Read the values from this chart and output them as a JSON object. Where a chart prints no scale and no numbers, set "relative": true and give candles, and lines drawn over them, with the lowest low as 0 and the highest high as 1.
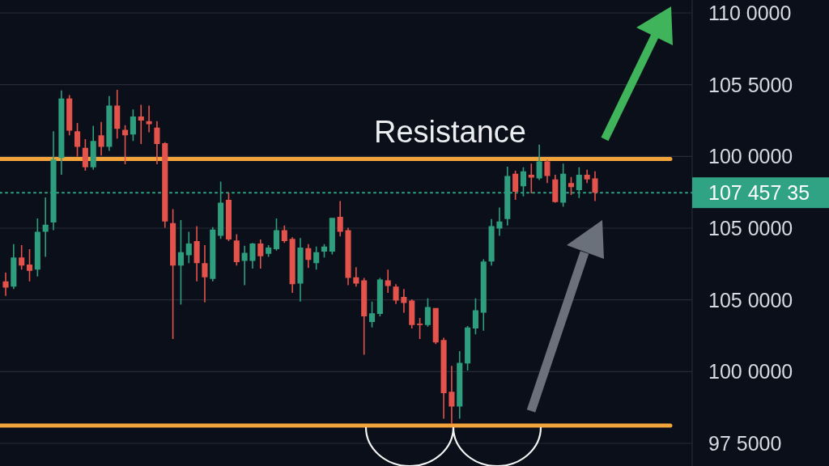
{
  "chart_data": {
    "type": "candlestick",
    "relative": true,
    "grid": "y",
    "categories": [
      null,
      null,
      null,
      null,
      null,
      null,
      null,
      null,
      null,
      null,
      null,
      null,
      null,
      null,
      null,
      null,
      null,
      null,
      null,
      null,
      null,
      null,
      null,
      null,
      null,
      null,
      null,
      null,
      null,
      null,
      null,
      null,
      null,
      null,
      null,
      null,
      null,
      null,
      null,
      null,
      null,
      null,
      null,
      null,
      null,
      null,
      null,
      null,
      null,
      null,
      null,
      null,
      null,
      null,
      null,
      null,
      null,
      null,
      null,
      null,
      null,
      null,
      null,
      null,
      null,
      null,
      null,
      null,
      null,
      null,
      null,
      null,
      null,
      null,
      null
    ],
    "ohlc": [
      [
        0.427,
        0.453,
        0.383,
        0.408
      ],
      [
        0.411,
        0.538,
        0.404,
        0.498
      ],
      [
        0.498,
        0.535,
        0.462,
        0.474
      ],
      [
        0.477,
        0.523,
        0.427,
        0.458
      ],
      [
        0.462,
        0.615,
        0.441,
        0.575
      ],
      [
        0.575,
        0.678,
        0.5,
        0.596
      ],
      [
        0.603,
        0.876,
        0.58,
        0.791
      ],
      [
        0.796,
        0.998,
        0.746,
        0.974
      ],
      [
        0.974,
        0.984,
        0.864,
        0.878
      ],
      [
        0.876,
        0.901,
        0.8,
        0.829
      ],
      [
        0.826,
        0.852,
        0.758,
        0.768
      ],
      [
        0.768,
        0.892,
        0.761,
        0.847
      ],
      [
        0.864,
        0.904,
        0.803,
        0.829
      ],
      [
        0.829,
        0.981,
        0.817,
        0.953
      ],
      [
        0.953,
        1.0,
        0.854,
        0.883
      ],
      [
        0.88,
        0.894,
        0.777,
        0.864
      ],
      [
        0.866,
        0.941,
        0.847,
        0.92
      ],
      [
        0.92,
        0.955,
        0.838,
        0.908
      ],
      [
        0.906,
        0.953,
        0.873,
        0.897
      ],
      [
        0.887,
        0.906,
        0.777,
        0.838
      ],
      [
        0.84,
        0.843,
        0.587,
        0.606
      ],
      [
        0.601,
        0.643,
        0.254,
        0.474
      ],
      [
        0.474,
        0.61,
        0.357,
        0.514
      ],
      [
        0.505,
        0.575,
        0.481,
        0.54
      ],
      [
        0.547,
        0.592,
        0.427,
        0.481
      ],
      [
        0.481,
        0.535,
        0.364,
        0.439
      ],
      [
        0.434,
        0.589,
        0.427,
        0.582
      ],
      [
        0.563,
        0.725,
        0.554,
        0.662
      ],
      [
        0.671,
        0.692,
        0.547,
        0.552
      ],
      [
        0.549,
        0.568,
        0.474,
        0.484
      ],
      [
        0.488,
        0.533,
        0.415,
        0.512
      ],
      [
        0.488,
        0.542,
        0.465,
        0.54
      ],
      [
        0.54,
        0.552,
        0.465,
        0.502
      ],
      [
        0.509,
        0.535,
        0.5,
        0.528
      ],
      [
        0.523,
        0.615,
        0.519,
        0.58
      ],
      [
        0.58,
        0.594,
        0.542,
        0.547
      ],
      [
        0.554,
        0.559,
        0.392,
        0.418
      ],
      [
        0.42,
        0.556,
        0.366,
        0.528
      ],
      [
        0.526,
        0.538,
        0.467,
        0.491
      ],
      [
        0.481,
        0.531,
        0.462,
        0.514
      ],
      [
        0.516,
        0.538,
        0.498,
        0.531
      ],
      [
        0.516,
        0.617,
        0.507,
        0.617
      ],
      [
        0.62,
        0.667,
        0.561,
        0.575
      ],
      [
        0.58,
        0.587,
        0.415,
        0.437
      ],
      [
        0.439,
        0.469,
        0.411,
        0.42
      ],
      [
        0.43,
        0.437,
        0.207,
        0.322
      ],
      [
        0.305,
        0.366,
        0.289,
        0.331
      ],
      [
        0.329,
        0.437,
        0.322,
        0.432
      ],
      [
        0.43,
        0.462,
        0.392,
        0.413
      ],
      [
        0.411,
        0.418,
        0.359,
        0.369
      ],
      [
        0.38,
        0.404,
        0.333,
        0.362
      ],
      [
        0.369,
        0.373,
        0.286,
        0.296
      ],
      [
        0.3,
        0.317,
        0.254,
        0.296
      ],
      [
        0.296,
        0.376,
        0.291,
        0.35
      ],
      [
        0.347,
        0.347,
        0.239,
        0.244
      ],
      [
        0.251,
        0.258,
        0.016,
        0.092
      ],
      [
        0.096,
        0.174,
        0.0,
        0.052
      ],
      [
        0.052,
        0.218,
        0.016,
        0.183
      ],
      [
        0.181,
        0.293,
        0.16,
        0.289
      ],
      [
        0.286,
        0.376,
        0.268,
        0.34
      ],
      [
        0.333,
        0.493,
        0.279,
        0.486
      ],
      [
        0.486,
        0.613,
        0.474,
        0.592
      ],
      [
        0.585,
        0.648,
        0.563,
        0.606
      ],
      [
        0.613,
        0.77,
        0.594,
        0.742
      ],
      [
        0.749,
        0.758,
        0.671,
        0.695
      ],
      [
        0.711,
        0.768,
        0.681,
        0.756
      ],
      [
        0.746,
        0.779,
        0.69,
        0.737
      ],
      [
        0.735,
        0.836,
        0.73,
        0.786
      ],
      [
        0.786,
        0.791,
        0.721,
        0.742
      ],
      [
        0.732,
        0.746,
        0.662,
        0.664
      ],
      [
        0.662,
        0.779,
        0.65,
        0.749
      ],
      [
        0.721,
        0.739,
        0.685,
        0.709
      ],
      [
        0.7,
        0.768,
        0.676,
        0.746
      ],
      [
        0.746,
        0.761,
        0.721,
        0.732
      ],
      [
        0.735,
        0.756,
        0.667,
        0.692
      ]
    ],
    "colors": [
      "#e3524b",
      "#2e9e7e",
      "#e3524b",
      "#e3524b",
      "#2e9e7e",
      "#2e9e7e",
      "#2e9e7e",
      "#2e9e7e",
      "#e3524b",
      "#e3524b",
      "#e3524b",
      "#2e9e7e",
      "#e3524b",
      "#2e9e7e",
      "#e3524b",
      "#e3524b",
      "#2e9e7e",
      "#e3524b",
      "#e3524b",
      "#e3524b",
      "#e3524b",
      "#e3524b",
      "#2e9e7e",
      "#2e9e7e",
      "#e3524b",
      "#e3524b",
      "#2e9e7e",
      "#2e9e7e",
      "#e3524b",
      "#e3524b",
      "#2e9e7e",
      "#2e9e7e",
      "#e3524b",
      "#2e9e7e",
      "#2e9e7e",
      "#e3524b",
      "#e3524b",
      "#2e9e7e",
      "#e3524b",
      "#2e9e7e",
      "#2e9e7e",
      "#2e9e7e",
      "#e3524b",
      "#e3524b",
      "#e3524b",
      "#e3524b",
      "#2e9e7e",
      "#2e9e7e",
      "#e3524b",
      "#e3524b",
      "#e3524b",
      "#e3524b",
      "#e3524b",
      "#2e9e7e",
      "#e3524b",
      "#e3524b",
      "#e3524b",
      "#2e9e7e",
      "#2e9e7e",
      "#2e9e7e",
      "#2e9e7e",
      "#2e9e7e",
      "#2e9e7e",
      "#2e9e7e",
      "#e3524b",
      "#2e9e7e",
      "#e3524b",
      "#2e9e7e",
      "#e3524b",
      "#e3524b",
      "#2e9e7e",
      "#e3524b",
      "#2e9e7e",
      "#e3524b",
      "#e3524b"
    ],
    "ref_lines": [
      {
        "axis": "y",
        "value": 0.793,
        "label": "Resistance",
        "color": "#f2a33a",
        "line_style": "solid"
      },
      {
        "axis": "y",
        "value": -0.005,
        "color": "#f2a33a",
        "line_style": "solid"
      },
      {
        "axis": "y",
        "value": 0.692,
        "color": "#2fa383",
        "line_style": "dotted"
      }
    ],
    "annotations": [
      "110 0000",
      "105 5000",
      "100 0000",
      "105 0000",
      "105 0000",
      "100 0000",
      "97 5000",
      "107 457 35"
    ]
  }
}
